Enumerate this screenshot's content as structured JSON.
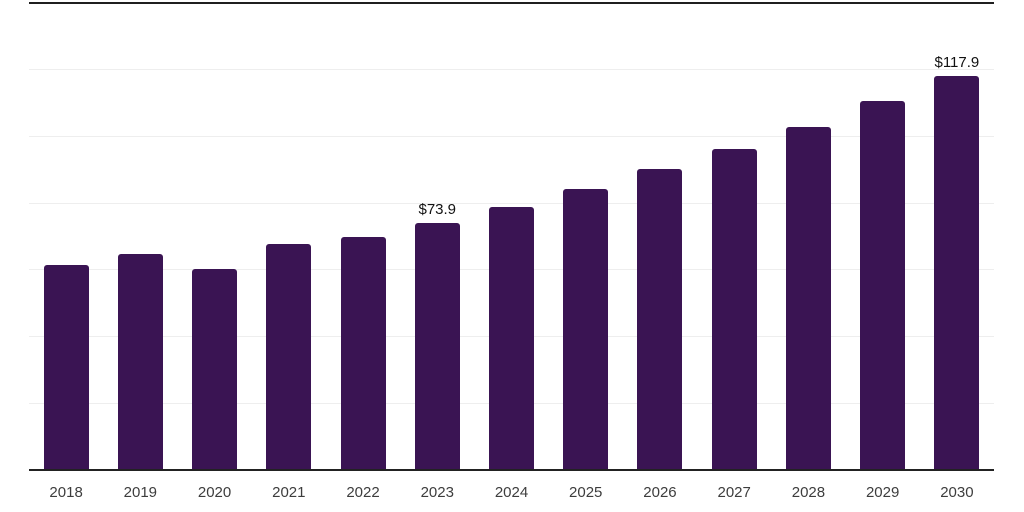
{
  "chart_data": {
    "type": "bar",
    "title": "",
    "xlabel": "",
    "ylabel": "",
    "categories": [
      "2018",
      "2019",
      "2020",
      "2021",
      "2022",
      "2023",
      "2024",
      "2025",
      "2026",
      "2027",
      "2028",
      "2029",
      "2030"
    ],
    "values": [
      61.2,
      64.7,
      60.0,
      67.7,
      69.8,
      73.9,
      78.7,
      84.2,
      90.1,
      96.1,
      102.7,
      110.3,
      117.9
    ],
    "point_labels": [
      "",
      "",
      "",
      "",
      "",
      "$73.9",
      "",
      "",
      "",
      "",
      "",
      "",
      "$117.9"
    ],
    "ylim": [
      0,
      140
    ],
    "gridline_step": 20,
    "grid": "horizontal",
    "y_tick_labels_visible": false,
    "legend_position": "none",
    "colors": {
      "background": "#ffffff",
      "bar": "#3a1453",
      "value_label": "#111111",
      "tick_label": "#3d3d3d",
      "gridline": "#eeeeee",
      "axis_line": "#222222",
      "top_border": "#1f1f1f"
    }
  }
}
